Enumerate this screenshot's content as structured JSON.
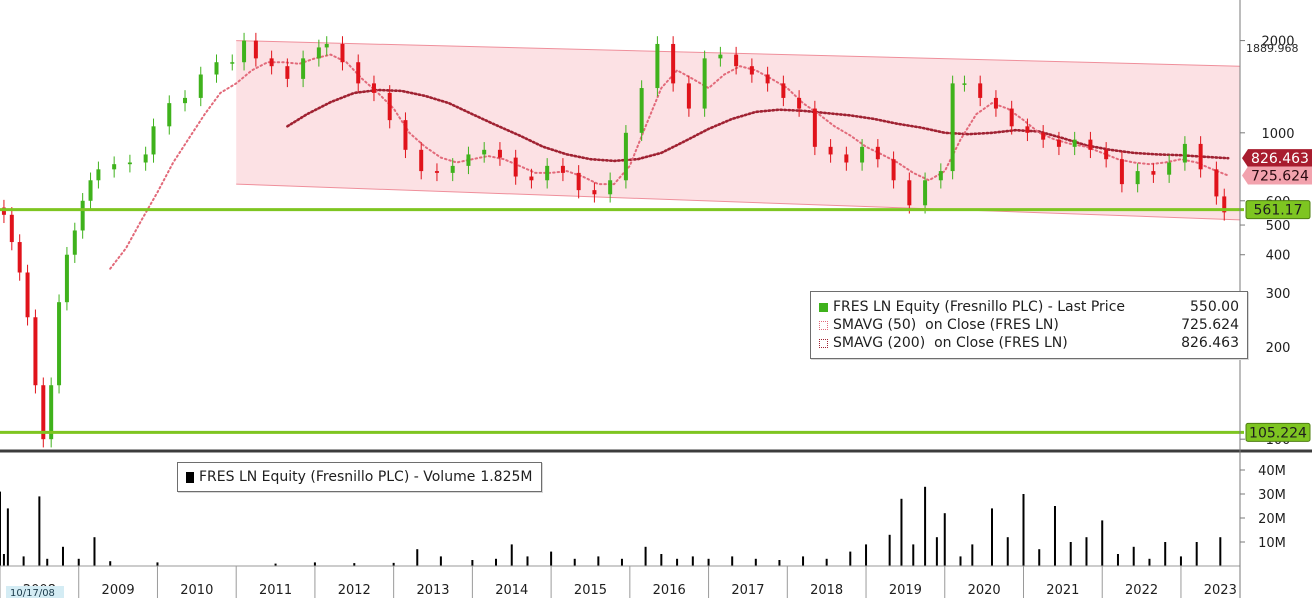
{
  "chart_data": [
    {
      "type": "line",
      "subtype": "candlestick",
      "scale": "log",
      "ylim": [
        95,
        2300
      ],
      "x_axis_labels": [
        "2008",
        "2009",
        "2010",
        "2011",
        "2012",
        "2013",
        "2014",
        "2015",
        "2016",
        "2017",
        "2018",
        "2019",
        "2020",
        "2021",
        "2022",
        "2023"
      ],
      "start_date_label": "10/17/08",
      "yticks": [
        {
          "value": 2000,
          "label": "2000"
        },
        {
          "value": 1000,
          "label": "1000"
        },
        {
          "value": 600,
          "label": "600"
        },
        {
          "value": 500,
          "label": "500"
        },
        {
          "value": 400,
          "label": "400"
        },
        {
          "value": 300,
          "label": "300"
        },
        {
          "value": 200,
          "label": "200"
        },
        {
          "value": 100,
          "label": "100"
        }
      ],
      "legend": {
        "placement": "center-right",
        "entries": [
          {
            "label": "FRES LN Equity (Fresnillo PLC) - Last Price",
            "value": "550.00",
            "swatch": "solid-green"
          },
          {
            "label": "SMAVG (50)  on Close (FRES LN)",
            "value": "725.624",
            "swatch": "dotted-pink"
          },
          {
            "label": "SMAVG (200)  on Close (FRES LN)",
            "value": "826.463",
            "swatch": "dotted-darkred"
          }
        ]
      },
      "series": [
        {
          "name": "FRES LN Equity (Fresnillo PLC) - Last Price",
          "color_up": "#3fb21c",
          "color_down": "#e0131b",
          "x": [
            2008.0,
            2008.1,
            2008.2,
            2008.3,
            2008.4,
            2008.5,
            2008.6,
            2008.7,
            2008.8,
            2008.9,
            2009.0,
            2009.1,
            2009.2,
            2009.3,
            2009.5,
            2009.7,
            2009.9,
            2010.0,
            2010.2,
            2010.4,
            2010.6,
            2010.8,
            2011.0,
            2011.15,
            2011.3,
            2011.5,
            2011.7,
            2011.9,
            2012.1,
            2012.2,
            2012.4,
            2012.6,
            2012.8,
            2013.0,
            2013.2,
            2013.4,
            2013.6,
            2013.8,
            2014.0,
            2014.2,
            2014.4,
            2014.6,
            2014.8,
            2015.0,
            2015.2,
            2015.4,
            2015.6,
            2015.8,
            2016.0,
            2016.2,
            2016.4,
            2016.6,
            2016.8,
            2017.0,
            2017.2,
            2017.4,
            2017.6,
            2017.8,
            2018.0,
            2018.2,
            2018.4,
            2018.6,
            2018.8,
            2019.0,
            2019.2,
            2019.4,
            2019.6,
            2019.8,
            2020.0,
            2020.15,
            2020.3,
            2020.5,
            2020.7,
            2020.9,
            2021.1,
            2021.3,
            2021.5,
            2021.7,
            2021.9,
            2022.1,
            2022.3,
            2022.5,
            2022.7,
            2022.9,
            2023.1,
            2023.3,
            2023.5,
            2023.6
          ],
          "values": [
            570,
            540,
            440,
            350,
            250,
            150,
            100,
            150,
            280,
            400,
            480,
            600,
            700,
            760,
            790,
            800,
            850,
            1050,
            1250,
            1300,
            1550,
            1700,
            1700,
            2000,
            1750,
            1650,
            1500,
            1750,
            1900,
            1950,
            1700,
            1450,
            1350,
            1100,
            880,
            750,
            740,
            780,
            850,
            880,
            830,
            720,
            700,
            780,
            740,
            650,
            630,
            700,
            1000,
            1400,
            1950,
            1450,
            1200,
            1750,
            1800,
            1650,
            1550,
            1450,
            1300,
            1200,
            900,
            850,
            800,
            900,
            820,
            700,
            580,
            700,
            750,
            1450,
            1450,
            1300,
            1200,
            1050,
            1000,
            950,
            900,
            950,
            880,
            820,
            680,
            750,
            730,
            800,
            920,
            760,
            620,
            550
          ]
        },
        {
          "name": "SMAVG (50)  on Close (FRES LN)",
          "color": "#e26a7a",
          "x": [
            2009.4,
            2009.6,
            2009.8,
            2010.0,
            2010.2,
            2010.4,
            2010.6,
            2010.8,
            2011.0,
            2011.2,
            2011.4,
            2011.6,
            2011.8,
            2012.0,
            2012.2,
            2012.4,
            2012.6,
            2012.8,
            2013.0,
            2013.2,
            2013.4,
            2013.6,
            2013.8,
            2014.0,
            2014.2,
            2014.4,
            2014.6,
            2014.8,
            2015.0,
            2015.2,
            2015.4,
            2015.6,
            2015.8,
            2016.0,
            2016.2,
            2016.4,
            2016.6,
            2016.8,
            2017.0,
            2017.2,
            2017.4,
            2017.6,
            2017.8,
            2018.0,
            2018.2,
            2018.4,
            2018.6,
            2018.8,
            2019.0,
            2019.2,
            2019.4,
            2019.6,
            2019.8,
            2020.0,
            2020.2,
            2020.4,
            2020.6,
            2020.8,
            2021.0,
            2021.2,
            2021.4,
            2021.6,
            2021.8,
            2022.0,
            2022.2,
            2022.4,
            2022.6,
            2022.8,
            2023.0,
            2023.2,
            2023.4,
            2023.6
          ],
          "values": [
            360,
            420,
            520,
            640,
            800,
            960,
            1150,
            1350,
            1450,
            1600,
            1700,
            1700,
            1680,
            1750,
            1800,
            1700,
            1500,
            1350,
            1200,
            1000,
            900,
            830,
            800,
            820,
            840,
            820,
            780,
            740,
            740,
            750,
            720,
            680,
            680,
            780,
            1050,
            1400,
            1600,
            1500,
            1400,
            1550,
            1650,
            1600,
            1500,
            1400,
            1250,
            1150,
            1050,
            980,
            900,
            850,
            800,
            740,
            700,
            750,
            950,
            1150,
            1250,
            1200,
            1100,
            1000,
            950,
            920,
            900,
            860,
            820,
            800,
            790,
            800,
            820,
            800,
            760,
            725.624
          ]
        },
        {
          "name": "SMAVG (200)  on Close (FRES LN)",
          "color": "#a02232",
          "x": [
            2011.65,
            2011.9,
            2012.2,
            2012.5,
            2012.8,
            2013.1,
            2013.4,
            2013.7,
            2014.0,
            2014.3,
            2014.6,
            2014.9,
            2015.2,
            2015.5,
            2015.8,
            2016.1,
            2016.4,
            2016.7,
            2017.0,
            2017.3,
            2017.6,
            2017.9,
            2018.2,
            2018.5,
            2018.8,
            2019.1,
            2019.4,
            2019.7,
            2020.0,
            2020.3,
            2020.6,
            2020.9,
            2021.2,
            2021.5,
            2021.8,
            2022.1,
            2022.4,
            2022.7,
            2023.0,
            2023.3,
            2023.6
          ],
          "values": [
            1050,
            1150,
            1260,
            1350,
            1380,
            1370,
            1320,
            1250,
            1150,
            1060,
            980,
            900,
            850,
            820,
            810,
            820,
            860,
            940,
            1030,
            1110,
            1170,
            1190,
            1180,
            1160,
            1140,
            1110,
            1070,
            1040,
            1000,
            990,
            1000,
            1020,
            1010,
            960,
            910,
            880,
            860,
            850,
            845,
            835,
            826.463
          ]
        }
      ],
      "channel": {
        "color": "#f9c9ce",
        "upper": {
          "x": [
            2011.0,
            2024.0
          ],
          "values": [
            2000,
            1650
          ]
        },
        "lower": {
          "x": [
            2011.0,
            2024.0
          ],
          "values": [
            680,
            520
          ]
        }
      },
      "hlines": [
        {
          "value": 561.17,
          "label": "561.17",
          "color": "#7ec521"
        },
        {
          "value": 105.224,
          "label": "105.224",
          "color": "#7ec521"
        }
      ],
      "right_tags": [
        {
          "value": 1889.968,
          "label": "1889.968",
          "style": "plain"
        },
        {
          "value": 826.463,
          "label": "826.463",
          "style": "darkred"
        },
        {
          "value": 725.624,
          "label": "725.624",
          "style": "pink"
        }
      ]
    },
    {
      "type": "bar",
      "title": "",
      "ylim": [
        0,
        45000000
      ],
      "yticks": [
        {
          "value": 10000000,
          "label": "10M"
        },
        {
          "value": 20000000,
          "label": "20M"
        },
        {
          "value": 30000000,
          "label": "30M"
        },
        {
          "value": 40000000,
          "label": "40M"
        }
      ],
      "legend": {
        "placement": "top-left",
        "entries": [
          {
            "label": "FRES LN Equity (Fresnillo PLC) - Volume",
            "value": "1.825M",
            "swatch": "solid-black"
          }
        ]
      },
      "series": [
        {
          "name": "FRES LN Equity (Fresnillo PLC) - Volume",
          "color": "#000000",
          "x": [
            2008.0,
            2008.05,
            2008.1,
            2008.3,
            2008.5,
            2008.6,
            2008.8,
            2009.0,
            2009.2,
            2009.4,
            2010.0,
            2011.5,
            2012.0,
            2012.5,
            2013.0,
            2013.3,
            2013.6,
            2014.0,
            2014.3,
            2014.5,
            2014.7,
            2015.0,
            2015.3,
            2015.6,
            2015.9,
            2016.2,
            2016.4,
            2016.6,
            2016.8,
            2017.0,
            2017.3,
            2017.6,
            2017.9,
            2018.2,
            2018.5,
            2018.8,
            2019.0,
            2019.3,
            2019.45,
            2019.6,
            2019.75,
            2019.9,
            2020.0,
            2020.2,
            2020.35,
            2020.6,
            2020.8,
            2021.0,
            2021.2,
            2021.4,
            2021.6,
            2021.8,
            2022.0,
            2022.2,
            2022.4,
            2022.6,
            2022.8,
            2023.0,
            2023.2,
            2023.5
          ],
          "values": [
            31000000,
            5000000,
            24000000,
            4000000,
            29000000,
            3000000,
            8000000,
            3000000,
            12000000,
            2000000,
            1500000,
            1000000,
            1500000,
            1200000,
            1300000,
            7000000,
            4000000,
            2500000,
            3000000,
            9000000,
            4000000,
            6000000,
            3000000,
            4000000,
            3000000,
            8000000,
            5000000,
            3000000,
            4000000,
            3000000,
            4000000,
            3000000,
            2500000,
            4000000,
            3000000,
            6000000,
            9000000,
            13000000,
            28000000,
            9000000,
            33000000,
            12000000,
            22000000,
            4000000,
            9000000,
            24000000,
            12000000,
            30000000,
            7000000,
            25000000,
            10000000,
            12000000,
            19000000,
            5000000,
            8000000,
            3000000,
            10000000,
            4000000,
            10000000,
            12000000
          ]
        }
      ]
    }
  ]
}
